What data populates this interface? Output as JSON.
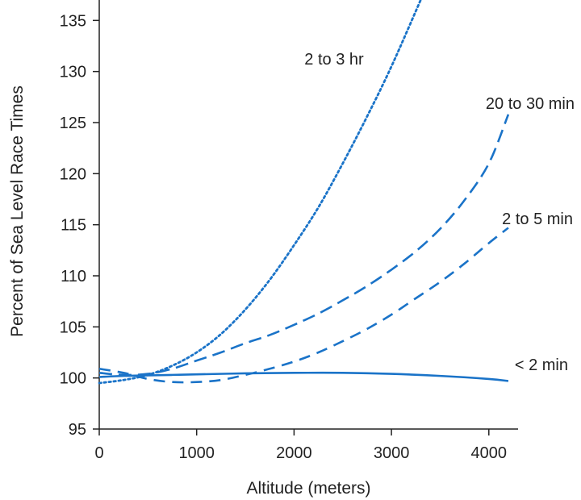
{
  "chart_data": {
    "type": "line",
    "title": "",
    "xlabel": "Altitude (meters)",
    "ylabel": "Percent of Sea Level Race Times",
    "xlim": [
      0,
      4300
    ],
    "ylim": [
      95,
      137
    ],
    "xticks": [
      0,
      1000,
      2000,
      3000,
      4000
    ],
    "xtick_labels": [
      "0",
      "1000",
      "2000",
      "3000",
      "4000"
    ],
    "yticks": [
      95,
      100,
      105,
      110,
      115,
      120,
      125,
      130,
      135
    ],
    "ytick_labels": [
      "95",
      "100",
      "105",
      "110",
      "115",
      "120",
      "125",
      "130",
      "135"
    ],
    "grid": false,
    "line_color": "#1a73c8",
    "series": [
      {
        "name": "2 to 3 hr",
        "style": "dotted",
        "x": [
          0,
          250,
          500,
          750,
          1000,
          1250,
          1500,
          1750,
          2000,
          2250,
          2500,
          2750,
          3000,
          3300
        ],
        "y": [
          99.5,
          99.8,
          100.3,
          101.2,
          102.5,
          104.3,
          106.7,
          109.6,
          113.0,
          116.7,
          121.0,
          125.6,
          130.5,
          137.0
        ]
      },
      {
        "name": "20 to 30 min",
        "style": "long-dash",
        "x": [
          0,
          250,
          500,
          750,
          1000,
          1250,
          1500,
          1750,
          2000,
          2250,
          2500,
          2750,
          3000,
          3250,
          3500,
          3750,
          4000,
          4200
        ],
        "y": [
          100.5,
          100.3,
          100.4,
          100.9,
          101.7,
          102.5,
          103.4,
          104.2,
          105.2,
          106.3,
          107.6,
          109.0,
          110.6,
          112.4,
          114.6,
          117.4,
          121.0,
          125.8
        ]
      },
      {
        "name": "2 to 5 min",
        "style": "dash",
        "x": [
          0,
          250,
          500,
          750,
          1000,
          1250,
          1500,
          1750,
          2000,
          2250,
          2500,
          2750,
          3000,
          3250,
          3500,
          3750,
          4000,
          4200
        ],
        "y": [
          100.9,
          100.5,
          99.9,
          99.6,
          99.6,
          99.8,
          100.3,
          100.9,
          101.6,
          102.5,
          103.6,
          104.8,
          106.2,
          107.8,
          109.4,
          111.2,
          113.2,
          114.7
        ]
      },
      {
        "name": "< 2 min",
        "style": "solid",
        "x": [
          0,
          250,
          500,
          750,
          1000,
          1500,
          2000,
          2500,
          3000,
          3500,
          4000,
          4200
        ],
        "y": [
          100.1,
          100.2,
          100.25,
          100.3,
          100.35,
          100.45,
          100.5,
          100.5,
          100.4,
          100.2,
          99.9,
          99.7
        ]
      }
    ],
    "annotations": [
      {
        "text": "2 to 3 hr",
        "series": "2 to 3 hr"
      },
      {
        "text": "20 to 30 min",
        "series": "20 to 30 min"
      },
      {
        "text": "2 to 5 min",
        "series": "2 to 5 min"
      },
      {
        "text": "< 2 min",
        "series": "< 2 min"
      }
    ]
  }
}
